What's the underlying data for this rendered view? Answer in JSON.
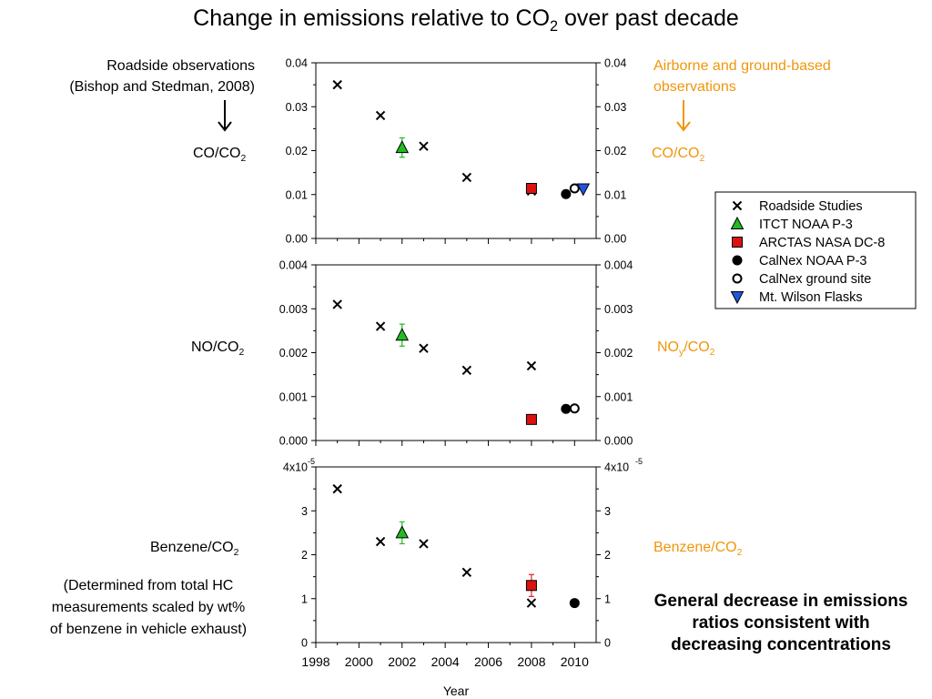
{
  "title": {
    "main": "Change in emissions relative to CO",
    "sub": "2",
    "tail": " over past decade"
  },
  "left_note": {
    "line1": "Roadside observations",
    "line2": "(Bishop and Stedman, 2008)"
  },
  "right_note": {
    "line1": "Airborne and ground-based",
    "line2": "observations"
  },
  "panel_labels": {
    "co_left": {
      "main": "CO/CO",
      "sub": "2"
    },
    "co_right": {
      "main": "CO/CO",
      "sub": "2"
    },
    "no_left": {
      "main": "NO/CO",
      "sub": "2"
    },
    "noy_right": {
      "main": "NO",
      "sub1": "y",
      "mid": "/CO",
      "sub2": "2"
    },
    "bz_left": {
      "main": "Benzene/CO",
      "sub": "2"
    },
    "bz_right": {
      "main": "Benzene/CO",
      "sub": "2"
    }
  },
  "benzene_note": {
    "line1": "(Determined from total HC",
    "line2": "measurements scaled by wt%",
    "line3": "of benzene in vehicle exhaust)"
  },
  "conclusion": "General decrease in emissions ratios consistent with decreasing concentrations",
  "colors": {
    "accent_orange": "#f0960a",
    "itct_green": "#22bb22",
    "arctas_red": "#dd1111",
    "flask_blue": "#2255dd",
    "errorbar_red": "#ee2222"
  },
  "chart_data": {
    "type": "scatter",
    "xlabel": "Year",
    "xlim": [
      1998,
      2011
    ],
    "xticks": [
      1998,
      2000,
      2002,
      2004,
      2006,
      2008,
      2010
    ],
    "legend": {
      "placement": "right",
      "entries": [
        {
          "name": "Roadside Studies",
          "marker": "x",
          "color": "#000000"
        },
        {
          "name": "ITCT NOAA P-3",
          "marker": "triangle",
          "color": "#22bb22"
        },
        {
          "name": "ARCTAS NASA DC-8",
          "marker": "square",
          "color": "#dd1111"
        },
        {
          "name": "CalNex NOAA P-3",
          "marker": "circle",
          "color": "#000000"
        },
        {
          "name": "CalNex ground site",
          "marker": "circle-open",
          "color": "#000000"
        },
        {
          "name": "Mt. Wilson Flasks",
          "marker": "triangle-down",
          "color": "#2255dd"
        }
      ]
    },
    "panels": [
      {
        "id": "co",
        "ylim": [
          0,
          0.04
        ],
        "yticks": [
          "0.00",
          "0.01",
          "0.02",
          "0.03",
          "0.04"
        ],
        "series": [
          {
            "name": "Roadside Studies",
            "points": [
              [
                1999,
                0.035
              ],
              [
                2001,
                0.028
              ],
              [
                2003,
                0.021
              ],
              [
                2005,
                0.0139
              ],
              [
                2008,
                0.0108
              ]
            ]
          },
          {
            "name": "ITCT NOAA P-3",
            "points": [
              [
                2002,
                0.0207
              ]
            ],
            "err": [
              0.0022
            ]
          },
          {
            "name": "ARCTAS NASA DC-8",
            "points": [
              [
                2008,
                0.0114
              ]
            ],
            "err": [
              0.0007
            ]
          },
          {
            "name": "CalNex NOAA P-3",
            "points": [
              [
                2009.6,
                0.0101
              ]
            ]
          },
          {
            "name": "CalNex ground site",
            "points": [
              [
                2010,
                0.0114
              ]
            ]
          },
          {
            "name": "Mt. Wilson Flasks",
            "points": [
              [
                2010.4,
                0.0113
              ]
            ]
          }
        ]
      },
      {
        "id": "no",
        "ylim": [
          0,
          0.004
        ],
        "yticks": [
          "0.000",
          "0.001",
          "0.002",
          "0.003",
          "0.004"
        ],
        "series": [
          {
            "name": "Roadside Studies",
            "points": [
              [
                1999,
                0.0031
              ],
              [
                2001,
                0.0026
              ],
              [
                2003,
                0.0021
              ],
              [
                2005,
                0.0016
              ],
              [
                2008,
                0.0017
              ]
            ]
          },
          {
            "name": "ITCT NOAA P-3",
            "points": [
              [
                2002,
                0.0024
              ]
            ],
            "err": [
              0.00025
            ]
          },
          {
            "name": "ARCTAS NASA DC-8",
            "points": [
              [
                2008,
                0.00048
              ]
            ]
          },
          {
            "name": "CalNex NOAA P-3",
            "points": [
              [
                2009.6,
                0.00072
              ]
            ]
          },
          {
            "name": "CalNex ground site",
            "points": [
              [
                2010,
                0.00073
              ]
            ]
          }
        ]
      },
      {
        "id": "benzene",
        "ylim": [
          0,
          4
        ],
        "yticks": [
          "0",
          "1",
          "2",
          "3",
          "4x10"
        ],
        "top_tick_exponent": "-5",
        "series": [
          {
            "name": "Roadside Studies",
            "points": [
              [
                1999,
                3.5
              ],
              [
                2001,
                2.3
              ],
              [
                2003,
                2.25
              ],
              [
                2005,
                1.6
              ],
              [
                2008,
                0.9
              ]
            ]
          },
          {
            "name": "ITCT NOAA P-3",
            "points": [
              [
                2002,
                2.5
              ]
            ],
            "err": [
              0.25
            ]
          },
          {
            "name": "ARCTAS NASA DC-8",
            "points": [
              [
                2008,
                1.3
              ]
            ],
            "err": [
              0.25
            ]
          },
          {
            "name": "CalNex NOAA P-3",
            "points": [
              [
                2010,
                0.9
              ]
            ]
          }
        ]
      }
    ]
  }
}
